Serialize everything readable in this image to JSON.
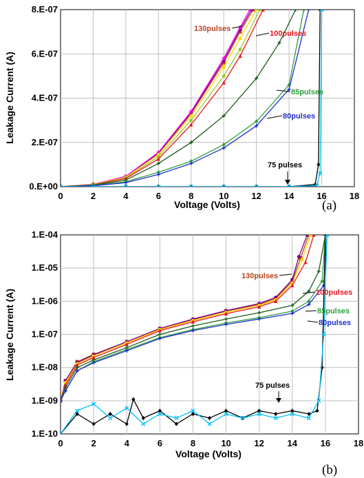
{
  "chart_data": [
    {
      "type": "line",
      "panel_label": "(a)",
      "xlabel": "Voltage (Volts)",
      "ylabel": "Leakage Current (A)",
      "xlim": [
        0,
        18
      ],
      "ylim": [
        0,
        8e-07
      ],
      "yscale": "linear",
      "grid": true,
      "x_ticks": [
        "0",
        "2",
        "4",
        "6",
        "8",
        "10",
        "12",
        "14",
        "16",
        "18"
      ],
      "y_ticks": [
        "0.E+00",
        "2.E-07",
        "4.E-07",
        "6.E-07",
        "8.E-07"
      ],
      "annotations": [
        {
          "text": "130pulses",
          "color": "#b5451b"
        },
        {
          "text": "100pulses",
          "color": "#e8151b"
        },
        {
          "text": "85pulses",
          "color": "#2e9e3e"
        },
        {
          "text": "80pulses",
          "color": "#1f2fd0"
        },
        {
          "text": "75 pulses",
          "color": "#000000"
        }
      ],
      "series": [
        {
          "color": "#b5451b",
          "marker": "square",
          "x": [
            0,
            2,
            4,
            6,
            8,
            10,
            11,
            11.8
          ],
          "y": [
            0,
            1e-08,
            4.5e-08,
            1.5e-07,
            3.3e-07,
            5.6e-07,
            7e-07,
            8e-07
          ]
        },
        {
          "color": "#800080",
          "marker": "circle",
          "x": [
            0,
            2,
            4,
            6,
            8,
            10,
            11,
            11.7
          ],
          "y": [
            0,
            1e-08,
            4.6e-08,
            1.52e-07,
            3.35e-07,
            5.7e-07,
            7.1e-07,
            8e-07
          ]
        },
        {
          "color": "#ff00ff",
          "marker": "diamond",
          "x": [
            0,
            2,
            4,
            6,
            8,
            10,
            11,
            11.6
          ],
          "y": [
            0,
            1.1e-08,
            4.7e-08,
            1.55e-07,
            3.4e-07,
            5.8e-07,
            7.2e-07,
            8e-07
          ]
        },
        {
          "color": "#ffd700",
          "marker": "circle",
          "x": [
            0,
            2,
            4,
            6,
            8,
            10,
            11,
            12
          ],
          "y": [
            0,
            1e-08,
            4.3e-08,
            1.45e-07,
            3.2e-07,
            5.4e-07,
            6.7e-07,
            8e-07
          ]
        },
        {
          "color": "#9acd32",
          "marker": "circle",
          "x": [
            0,
            2,
            4,
            6,
            8,
            10,
            11,
            12.2
          ],
          "y": [
            0,
            9e-09,
            4e-08,
            1.35e-07,
            3e-07,
            5e-07,
            6.2e-07,
            8e-07
          ]
        },
        {
          "color": "#e8151b",
          "marker": "triangle",
          "x": [
            0,
            2,
            4,
            6,
            8,
            10,
            11,
            12.4
          ],
          "y": [
            0,
            8e-09,
            3.7e-08,
            1.25e-07,
            2.8e-07,
            4.7e-07,
            5.9e-07,
            8e-07
          ]
        },
        {
          "color": "#1a5c1a",
          "marker": "plus",
          "x": [
            0,
            2,
            4,
            6,
            8,
            10,
            12,
            13.4,
            14.4
          ],
          "y": [
            0,
            7e-09,
            3e-08,
            1.05e-07,
            2e-07,
            3.2e-07,
            4.9e-07,
            6.5e-07,
            8e-07
          ]
        },
        {
          "color": "#2e9e3e",
          "marker": "diamond",
          "x": [
            0,
            2,
            4,
            6,
            8,
            10,
            12,
            14,
            14.9
          ],
          "y": [
            0,
            5e-09,
            2.2e-08,
            6.5e-08,
            1.15e-07,
            1.9e-07,
            2.95e-07,
            4.6e-07,
            8e-07
          ]
        },
        {
          "color": "#1f2fd0",
          "marker": "plus",
          "x": [
            0,
            2,
            4,
            6,
            8,
            10,
            12,
            14,
            15.2
          ],
          "y": [
            0,
            4e-09,
            1.8e-08,
            5.5e-08,
            1.05e-07,
            1.75e-07,
            2.75e-07,
            4.4e-07,
            8e-07
          ]
        },
        {
          "color": "#000000",
          "marker": "diamond",
          "x": [
            0,
            2,
            4,
            6,
            8,
            10,
            12,
            14,
            15.6,
            15.8,
            15.9
          ],
          "y": [
            0,
            0,
            0,
            0,
            0,
            0,
            0,
            0,
            1e-08,
            1e-07,
            8e-07
          ]
        },
        {
          "color": "#00bfff",
          "marker": "cross",
          "x": [
            0,
            2,
            4,
            6,
            8,
            10,
            12,
            14,
            15.7,
            15.9,
            16
          ],
          "y": [
            0,
            0,
            0,
            0,
            0,
            0,
            0,
            0,
            5e-09,
            6e-08,
            8e-07
          ]
        }
      ]
    },
    {
      "type": "line",
      "panel_label": "(b)",
      "xlabel": "Voltage (Volts)",
      "ylabel": "Leakage Current (A)",
      "xlim": [
        0,
        18
      ],
      "ylim": [
        1e-10,
        0.0001
      ],
      "yscale": "log",
      "grid": true,
      "x_ticks": [
        "0",
        "2",
        "4",
        "6",
        "8",
        "10",
        "12",
        "14",
        "16",
        "18"
      ],
      "y_ticks": [
        "1.E-10",
        "1.E-09",
        "1.E-08",
        "1.E-07",
        "1.E-06",
        "1.E-05",
        "1.E-04"
      ],
      "annotations": [
        {
          "text": "130pulses",
          "color": "#b5451b"
        },
        {
          "text": "100pulses",
          "color": "#e8151b"
        },
        {
          "text": "85pulses",
          "color": "#2e9e3e"
        },
        {
          "text": "80pulses",
          "color": "#1f2fd0"
        },
        {
          "text": "75 pulses",
          "color": "#000000"
        }
      ],
      "series": [
        {
          "color": "#b5451b",
          "marker": "square",
          "x": [
            0,
            0.3,
            1,
            2,
            4,
            6,
            8,
            10,
            12,
            13,
            14,
            14.5,
            15
          ],
          "y": [
            1e-09,
            4e-09,
            1.5e-08,
            2.5e-08,
            6e-08,
            1.5e-07,
            2.8e-07,
            5e-07,
            8e-07,
            1.2e-06,
            4e-06,
            2e-05,
            0.0001
          ]
        },
        {
          "color": "#800080",
          "marker": "circle",
          "x": [
            0,
            0.3,
            1,
            2,
            4,
            6,
            8,
            10,
            12,
            13,
            14,
            14.4,
            14.9
          ],
          "y": [
            1e-09,
            4e-09,
            1.4e-08,
            2.4e-08,
            6e-08,
            1.5e-07,
            2.9e-07,
            5.2e-07,
            8.5e-07,
            1.3e-06,
            4.5e-06,
            2.2e-05,
            0.0001
          ]
        },
        {
          "color": "#ffd700",
          "marker": "circle",
          "x": [
            0,
            0.3,
            1,
            2,
            4,
            6,
            8,
            10,
            12,
            13,
            14,
            14.6,
            15.1
          ],
          "y": [
            1e-09,
            3.5e-09,
            1.3e-08,
            2.2e-08,
            5.5e-08,
            1.4e-07,
            2.6e-07,
            4.6e-07,
            7.5e-07,
            1.1e-06,
            3.5e-06,
            1.8e-05,
            0.0001
          ]
        },
        {
          "color": "#e8151b",
          "marker": "triangle",
          "x": [
            0,
            0.3,
            1,
            2,
            4,
            6,
            8,
            10,
            12,
            13,
            14,
            14.8,
            15.3
          ],
          "y": [
            1e-09,
            3e-09,
            1.2e-08,
            2e-08,
            5e-08,
            1.3e-07,
            2.4e-07,
            4.2e-07,
            6.8e-07,
            1e-06,
            3e-06,
            1.5e-05,
            0.0001
          ]
        },
        {
          "color": "#1a5c1a",
          "marker": "plus",
          "x": [
            0,
            0.3,
            1,
            2,
            4,
            6,
            8,
            10,
            12,
            14,
            15,
            15.6,
            16
          ],
          "y": [
            1e-09,
            2.5e-09,
            1e-08,
            1.7e-08,
            4e-08,
            1e-07,
            1.8e-07,
            2.9e-07,
            4.5e-07,
            7.5e-07,
            2e-06,
            8e-06,
            0.0001
          ]
        },
        {
          "color": "#2e9e3e",
          "marker": "diamond",
          "x": [
            0,
            0.3,
            1,
            2,
            4,
            6,
            8,
            10,
            12,
            14,
            15,
            15.8,
            16
          ],
          "y": [
            1e-09,
            2e-09,
            8e-09,
            1.5e-08,
            3.5e-08,
            8e-08,
            1.4e-07,
            2.2e-07,
            3.2e-07,
            5e-07,
            1e-06,
            4e-06,
            0.0001
          ]
        },
        {
          "color": "#1f2fd0",
          "marker": "plus",
          "x": [
            0,
            0.3,
            1,
            2,
            4,
            6,
            8,
            10,
            12,
            14,
            15,
            15.9,
            16.1
          ],
          "y": [
            1e-09,
            2e-09,
            8e-09,
            1.4e-08,
            3.2e-08,
            7.5e-08,
            1.3e-07,
            2e-07,
            2.9e-07,
            4.3e-07,
            8e-07,
            3e-06,
            0.0001
          ]
        },
        {
          "color": "#000000",
          "marker": "diamond",
          "x": [
            0,
            1,
            2,
            3,
            4,
            4.4,
            5,
            6,
            7,
            8,
            9,
            10,
            11,
            12,
            13,
            14,
            15,
            15.5,
            15.8,
            16
          ],
          "y": [
            1e-10,
            4e-10,
            2e-10,
            4e-10,
            2e-10,
            1.1e-09,
            3e-10,
            5e-10,
            2e-10,
            4e-10,
            3e-10,
            5e-10,
            3e-10,
            5e-10,
            4e-10,
            5e-10,
            4e-10,
            5e-10,
            1e-08,
            0.0001
          ]
        },
        {
          "color": "#00bfff",
          "marker": "cross",
          "x": [
            0,
            1,
            2,
            3,
            4,
            5,
            6,
            7,
            8,
            9,
            10,
            11,
            12,
            13,
            14,
            15,
            15.6,
            15.9,
            16.1
          ],
          "y": [
            1e-10,
            5e-10,
            8e-10,
            3e-10,
            6e-10,
            2e-10,
            4e-10,
            3e-10,
            5e-10,
            2e-10,
            4e-10,
            3e-10,
            4e-10,
            3e-10,
            4e-10,
            3e-10,
            1e-09,
            1e-07,
            0.0001
          ]
        }
      ]
    }
  ]
}
